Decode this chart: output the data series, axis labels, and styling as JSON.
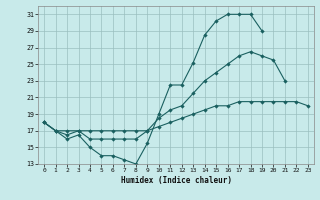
{
  "xlabel": "Humidex (Indice chaleur)",
  "background_color": "#c8eaea",
  "grid_color": "#9bbfbf",
  "line_color": "#1a6060",
  "xlim": [
    -0.5,
    23.5
  ],
  "ylim": [
    13,
    32
  ],
  "xticks": [
    0,
    1,
    2,
    3,
    4,
    5,
    6,
    7,
    8,
    9,
    10,
    11,
    12,
    13,
    14,
    15,
    16,
    17,
    18,
    19,
    20,
    21,
    22,
    23
  ],
  "yticks": [
    13,
    15,
    17,
    19,
    21,
    23,
    25,
    27,
    29,
    31
  ],
  "line1_x": [
    0,
    1,
    2,
    3,
    4,
    5,
    6,
    7,
    8,
    9,
    10,
    11,
    12,
    13,
    14,
    15,
    16,
    17,
    18,
    19
  ],
  "line1_y": [
    18,
    17,
    16,
    16.5,
    15,
    14,
    14,
    13.5,
    13,
    15.5,
    19,
    22.5,
    22.5,
    25.2,
    28.5,
    30.2,
    31,
    31,
    31,
    29
  ],
  "line2_x": [
    0,
    1,
    2,
    3,
    4,
    5,
    6,
    7,
    8,
    9,
    10,
    11,
    12,
    13,
    14,
    15,
    16,
    17,
    18,
    19,
    20,
    21
  ],
  "line2_y": [
    18,
    17,
    16.5,
    17,
    16,
    16,
    16,
    16,
    16,
    17,
    18.5,
    19.5,
    20,
    21.5,
    23,
    24,
    25,
    26,
    26.5,
    26,
    25.5,
    23
  ],
  "line3_x": [
    0,
    1,
    2,
    3,
    4,
    5,
    6,
    7,
    8,
    9,
    10,
    11,
    12,
    13,
    14,
    15,
    16,
    17,
    18,
    19,
    20,
    21,
    22,
    23
  ],
  "line3_y": [
    18,
    17,
    17,
    17,
    17,
    17,
    17,
    17,
    17,
    17,
    17.5,
    18,
    18.5,
    19,
    19.5,
    20,
    20,
    20.5,
    20.5,
    20.5,
    20.5,
    20.5,
    20.5,
    20
  ]
}
